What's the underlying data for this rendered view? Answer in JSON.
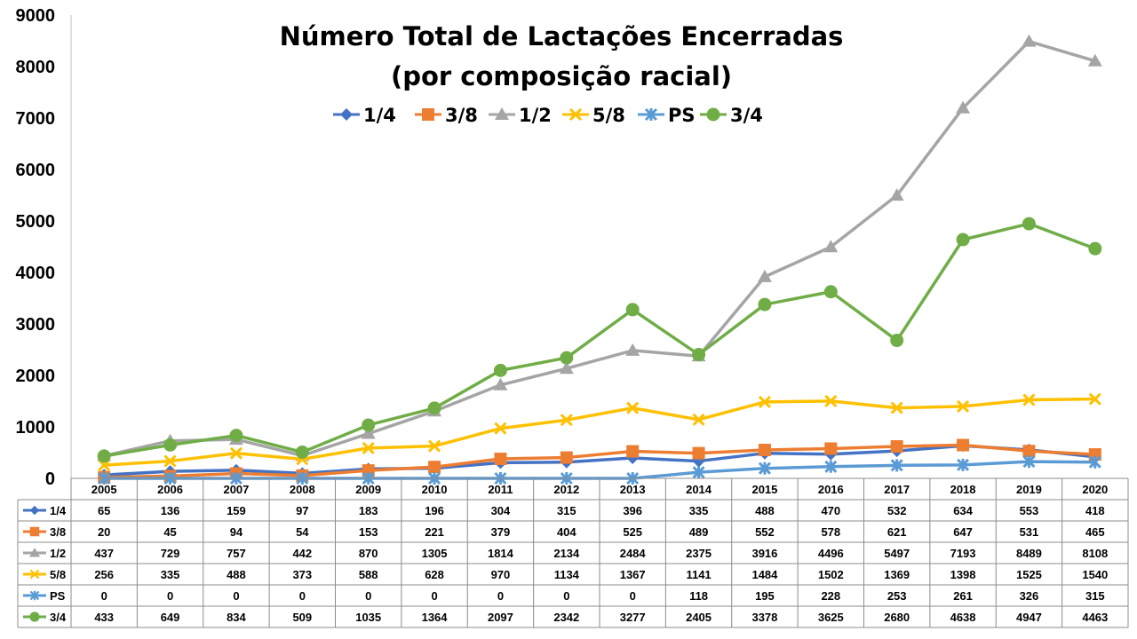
{
  "chart_data": {
    "type": "line",
    "title_line1": "Número Total de Lactações Encerradas",
    "title_line2": "(por composição racial)",
    "ylim": [
      0,
      9000
    ],
    "yticks": [
      "0",
      "1000",
      "2000",
      "3000",
      "4000",
      "5000",
      "6000",
      "7000",
      "8000",
      "9000"
    ],
    "categories": [
      "2005",
      "2006",
      "2007",
      "2008",
      "2009",
      "2010",
      "2011",
      "2012",
      "2013",
      "2014",
      "2015",
      "2016",
      "2017",
      "2018",
      "2019",
      "2020"
    ],
    "legend_position": "top-center",
    "grid": false,
    "data_table": true,
    "series": [
      {
        "name": "1/4",
        "color": "#4472C4",
        "marker": "diamond",
        "values": [
          65,
          136,
          159,
          97,
          183,
          196,
          304,
          315,
          396,
          335,
          488,
          470,
          532,
          634,
          553,
          418
        ]
      },
      {
        "name": "3/8",
        "color": "#ED7D31",
        "marker": "square",
        "values": [
          20,
          45,
          94,
          54,
          153,
          221,
          379,
          404,
          525,
          489,
          552,
          578,
          621,
          647,
          531,
          465
        ]
      },
      {
        "name": "1/2",
        "color": "#A5A5A5",
        "marker": "triangle",
        "values": [
          437,
          729,
          757,
          442,
          870,
          1305,
          1814,
          2134,
          2484,
          2375,
          3916,
          4496,
          5497,
          7193,
          8489,
          8108
        ]
      },
      {
        "name": "5/8",
        "color": "#FFC000",
        "marker": "x",
        "values": [
          256,
          335,
          488,
          373,
          588,
          628,
          970,
          1134,
          1367,
          1141,
          1484,
          1502,
          1369,
          1398,
          1525,
          1540
        ]
      },
      {
        "name": "PS",
        "color": "#5B9BD5",
        "marker": "star",
        "values": [
          0,
          0,
          0,
          0,
          0,
          0,
          0,
          0,
          0,
          118,
          195,
          228,
          253,
          261,
          326,
          315
        ]
      },
      {
        "name": "3/4",
        "color": "#70AD47",
        "marker": "circle",
        "values": [
          433,
          649,
          834,
          509,
          1035,
          1364,
          2097,
          2342,
          3277,
          2405,
          3378,
          3625,
          2680,
          4638,
          4947,
          4463
        ]
      }
    ]
  }
}
